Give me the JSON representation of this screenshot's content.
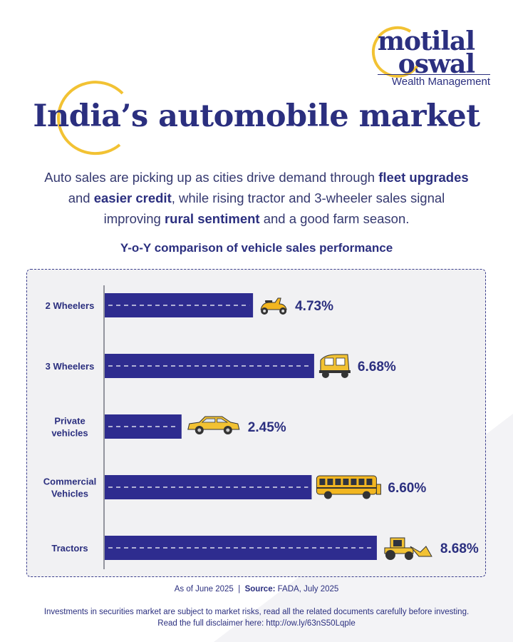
{
  "brand": {
    "line1": "motilal",
    "line2": "oswal",
    "sub": "Wealth Management",
    "accent_color": "#f2c233",
    "primary_color": "#2b2f7f"
  },
  "header": {
    "title": "India’s automobile market"
  },
  "intro": {
    "p1": "Auto sales are picking up  as cities drive demand through ",
    "b1": "fleet upgrades",
    "p2": " and ",
    "b2": "easier credit",
    "p3": ", while rising tractor and 3-wheeler sales signal improving ",
    "b3": "rural sentiment",
    "p4": " and a good farm season."
  },
  "chart_data": {
    "type": "bar",
    "orientation": "horizontal",
    "title": "Y-o-Y comparison of vehicle sales performance",
    "categories": [
      "2 Wheelers",
      "3 Wheelers",
      "Private vehicles",
      "Commercial Vehicles",
      "Tractors"
    ],
    "category_lines": [
      [
        "2 Wheelers"
      ],
      [
        "3 Wheelers"
      ],
      [
        "Private",
        "vehicles"
      ],
      [
        "Commercial",
        "Vehicles"
      ],
      [
        "Tractors"
      ]
    ],
    "values": [
      4.73,
      6.68,
      2.45,
      6.6,
      8.68
    ],
    "value_labels": [
      "4.73%",
      "6.68%",
      "2.45%",
      "6.60%",
      "8.68%"
    ],
    "icons": [
      "scooter-icon",
      "auto-rickshaw-icon",
      "car-icon",
      "bus-icon",
      "tractor-loader-icon"
    ],
    "bar_color": "#2e2c8f",
    "xlim": [
      0,
      10
    ],
    "grid": false
  },
  "footnote": {
    "as_of": "As of June 2025",
    "separator": "|",
    "source_label": "Source:",
    "source_text": "FADA, July 2025"
  },
  "disclaimer": {
    "line1": "Investments in securities market are subject to market risks, read all the related documents carefully before investing.",
    "line2": "Read the full disclaimer here: http://ow.ly/63nS50Lqple"
  }
}
